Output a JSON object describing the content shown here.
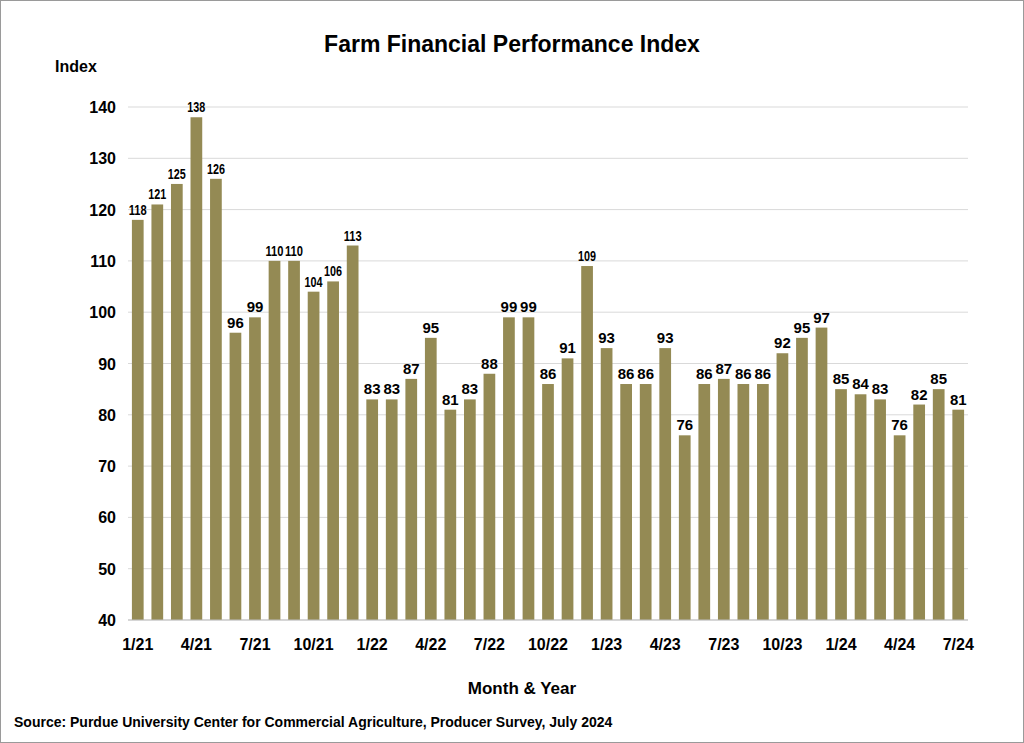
{
  "chart_data": {
    "type": "bar",
    "title": "Farm Financial Performance Index",
    "y_label": "Index",
    "x_label": "Month & Year",
    "source": "Source: Purdue University Center for Commercial Agriculture, Producer Survey, July 2024",
    "categories": [
      "1/21",
      null,
      null,
      "4/21",
      null,
      null,
      "7/21",
      null,
      null,
      "10/21",
      null,
      null,
      "1/22",
      null,
      null,
      "4/22",
      null,
      null,
      "7/22",
      null,
      null,
      "10/22",
      null,
      null,
      "1/23",
      null,
      null,
      "4/23",
      null,
      null,
      "7/23",
      null,
      null,
      "10/23",
      null,
      null,
      "1/24",
      null,
      null,
      "4/24",
      null,
      null,
      "7/24"
    ],
    "values": [
      118,
      121,
      125,
      138,
      126,
      96,
      99,
      110,
      110,
      104,
      106,
      113,
      83,
      83,
      87,
      95,
      81,
      83,
      88,
      99,
      99,
      86,
      91,
      109,
      93,
      86,
      86,
      93,
      76,
      86,
      87,
      86,
      86,
      92,
      95,
      97,
      85,
      84,
      83,
      76,
      82,
      85,
      81
    ],
    "color": "#948a54",
    "ylim": [
      40,
      140
    ],
    "yticks": [
      40,
      50,
      60,
      70,
      80,
      90,
      100,
      110,
      120,
      130,
      140
    ],
    "grid": true,
    "data_labels": true
  }
}
